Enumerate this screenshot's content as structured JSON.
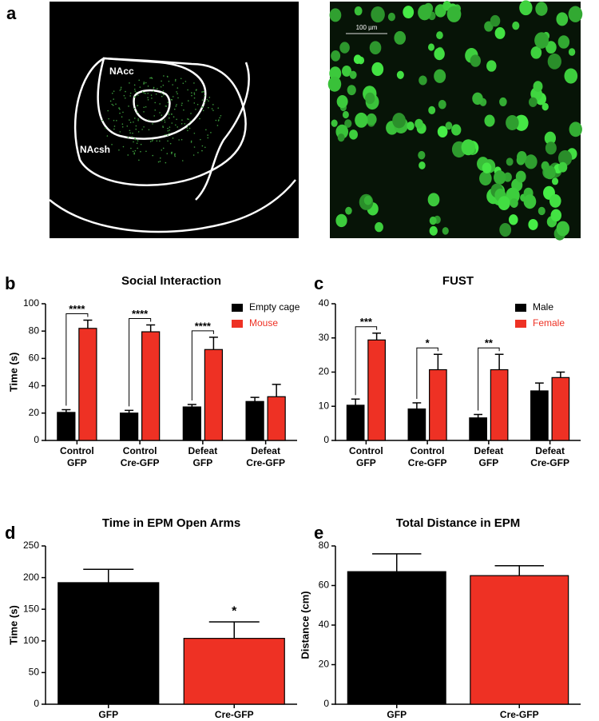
{
  "panel_a": {
    "label": "a",
    "left_image": {
      "regions": [
        "NAcc",
        "NAcsh"
      ]
    },
    "right_image": {
      "scale_bar": "100 µm"
    }
  },
  "chart_data": [
    {
      "type": "bar",
      "panel_label": "b",
      "title": "Social Interaction",
      "ylabel": "Time (s)",
      "categories": [
        "Control GFP",
        "Control Cre-GFP",
        "Defeat GFP",
        "Defeat Cre-GFP"
      ],
      "series": [
        {
          "name": "Empty cage",
          "color": "#000000",
          "values": [
            20.5,
            20,
            24.5,
            28.5
          ],
          "errors": [
            2,
            2,
            1.8,
            3
          ]
        },
        {
          "name": "Mouse",
          "color": "#ee3124",
          "values": [
            82,
            79.5,
            66.5,
            32
          ],
          "errors": [
            6,
            5,
            9,
            9
          ]
        }
      ],
      "significance": [
        "****",
        "****",
        "****",
        null
      ],
      "ylim": [
        0,
        100
      ],
      "yticks": [
        0,
        20,
        40,
        60,
        80,
        100
      ],
      "legend": "upper right"
    },
    {
      "type": "bar",
      "panel_label": "c",
      "title": "FUST",
      "ylabel": null,
      "categories": [
        "Control GFP",
        "Control Cre-GFP",
        "Defeat GFP",
        "Defeat Cre-GFP"
      ],
      "series": [
        {
          "name": "Male",
          "color": "#000000",
          "values": [
            10.3,
            9.2,
            6.6,
            14.5
          ],
          "errors": [
            1.8,
            1.8,
            1,
            2.3
          ]
        },
        {
          "name": "Female",
          "color": "#ee3124",
          "values": [
            29.4,
            20.7,
            20.7,
            18.4
          ],
          "errors": [
            2,
            4.5,
            4.5,
            1.6
          ]
        }
      ],
      "significance": [
        "***",
        "*",
        "**",
        null
      ],
      "ylim": [
        0,
        40
      ],
      "yticks": [
        0,
        10,
        20,
        30,
        40
      ],
      "legend": "upper right"
    },
    {
      "type": "bar",
      "panel_label": "d",
      "title": "Time in EPM Open Arms",
      "ylabel": "Time (s)",
      "categories": [
        "GFP",
        "Cre-GFP"
      ],
      "series": [
        {
          "name": null,
          "colors": [
            "#000000",
            "#ee3124"
          ],
          "values": [
            192,
            104
          ],
          "errors": [
            21,
            26
          ]
        }
      ],
      "significance": [
        null,
        "*"
      ],
      "ylim": [
        0,
        250
      ],
      "yticks": [
        0,
        50,
        100,
        150,
        200,
        250
      ],
      "legend": null
    },
    {
      "type": "bar",
      "panel_label": "e",
      "title": "Total Distance in EPM",
      "ylabel": "Distance (cm)",
      "categories": [
        "GFP",
        "Cre-GFP"
      ],
      "series": [
        {
          "name": null,
          "colors": [
            "#000000",
            "#ee3124"
          ],
          "values": [
            67,
            65
          ],
          "errors": [
            9,
            5
          ]
        }
      ],
      "significance": [
        null,
        null
      ],
      "ylim": [
        0,
        80
      ],
      "yticks": [
        0,
        20,
        40,
        60,
        80
      ],
      "legend": null
    }
  ]
}
